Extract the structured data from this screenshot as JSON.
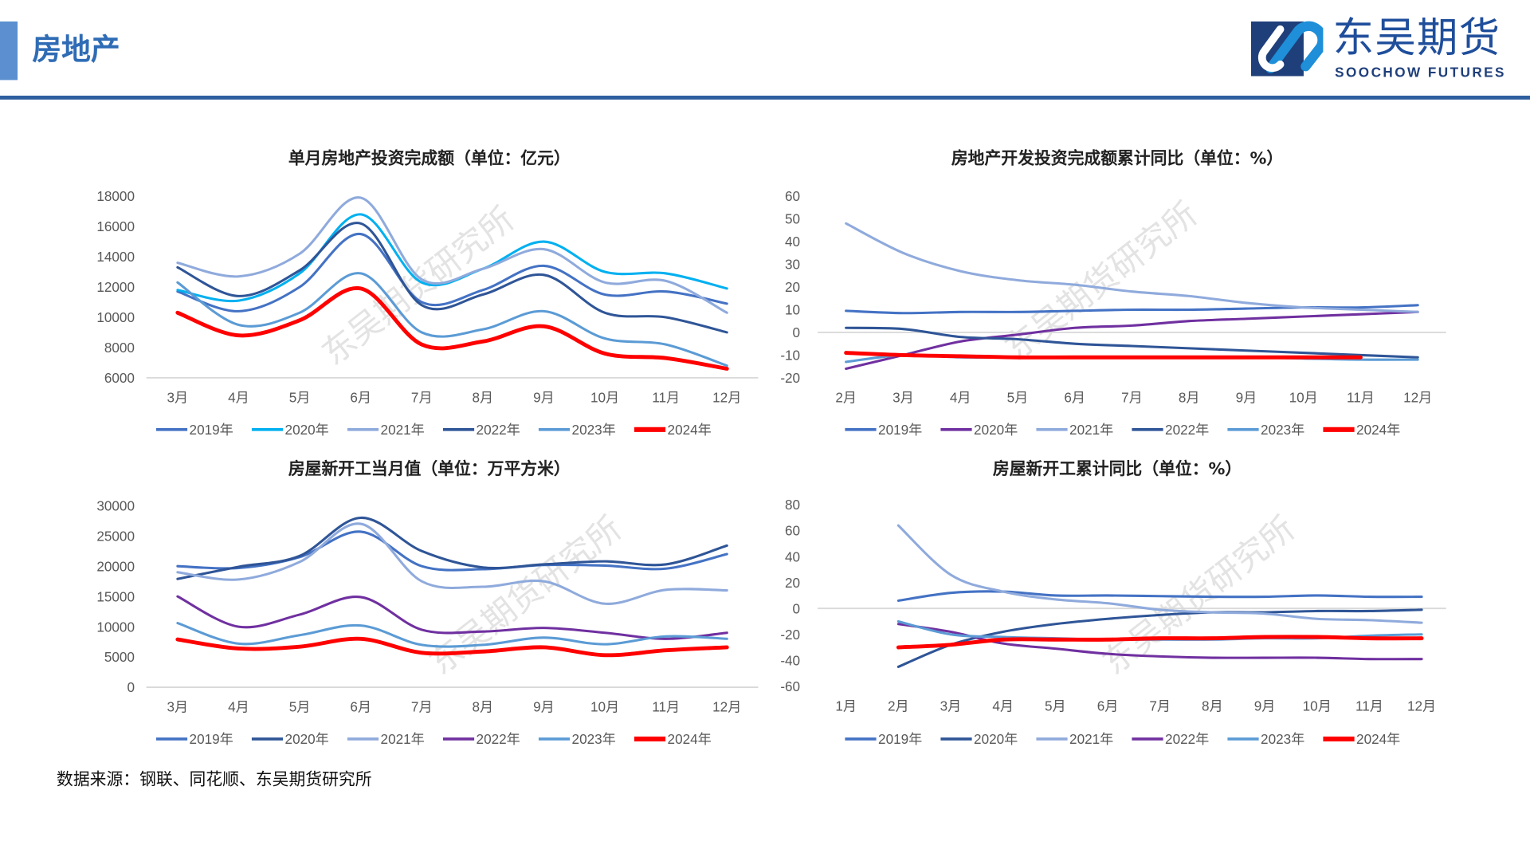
{
  "header": {
    "title": "房地产"
  },
  "logo": {
    "cn": "东吴期货",
    "en": "SOOCHOW FUTURES"
  },
  "watermark": "东吴期货研究所",
  "source": "数据来源：钢联、同花顺、东吴期货研究所",
  "chart_data": [
    {
      "type": "line",
      "title": "单月房地产投资完成额（单位：亿元）",
      "categories": [
        "3月",
        "4月",
        "5月",
        "6月",
        "7月",
        "8月",
        "9月",
        "10月",
        "11月",
        "12月"
      ],
      "ylim": [
        6000,
        18000
      ],
      "yticks": [
        6000,
        8000,
        10000,
        12000,
        14000,
        16000,
        18000
      ],
      "legend": "bottom",
      "grid": false,
      "series": [
        {
          "name": "2019年",
          "color": "#4472C4",
          "values": [
            11700,
            10400,
            12000,
            15500,
            11000,
            11800,
            13400,
            11500,
            11700,
            10900
          ]
        },
        {
          "name": "2020年",
          "color": "#00B0F0",
          "values": [
            11800,
            11100,
            12900,
            16800,
            12300,
            13200,
            15000,
            13000,
            12900,
            11900
          ]
        },
        {
          "name": "2021年",
          "color": "#8FAADC",
          "values": [
            13600,
            12700,
            14200,
            17900,
            12500,
            13200,
            14500,
            12300,
            12400,
            10300
          ]
        },
        {
          "name": "2022年",
          "color": "#2F5597",
          "values": [
            13300,
            11400,
            13100,
            16200,
            10800,
            11500,
            12800,
            10300,
            10000,
            9000
          ]
        },
        {
          "name": "2023年",
          "color": "#5B9BD5",
          "values": [
            12300,
            9500,
            10300,
            12900,
            9000,
            9200,
            10400,
            8600,
            8200,
            6800
          ]
        },
        {
          "name": "2024年",
          "color": "#FF0000",
          "values": [
            10300,
            8800,
            9800,
            11900,
            8200,
            8400,
            9400,
            7600,
            7300,
            6600
          ]
        }
      ]
    },
    {
      "type": "line",
      "title": "房地产开发投资完成额累计同比（单位：%）",
      "categories": [
        "2月",
        "3月",
        "4月",
        "5月",
        "6月",
        "7月",
        "8月",
        "9月",
        "10月",
        "11月",
        "12月"
      ],
      "ylim": [
        -20,
        60
      ],
      "yticks": [
        -20,
        -10,
        0,
        10,
        20,
        30,
        40,
        50,
        60
      ],
      "legend": "bottom",
      "grid": false,
      "series": [
        {
          "name": "2019年",
          "color": "#4472C4",
          "values": [
            9.5,
            8.5,
            9,
            9,
            9.5,
            10,
            10,
            10.5,
            11,
            11,
            12
          ]
        },
        {
          "name": "2020年",
          "color": "#7030A0",
          "values": [
            -16,
            -10,
            -4,
            -1,
            2,
            3,
            5,
            6,
            7,
            8,
            9
          ]
        },
        {
          "name": "2021年",
          "color": "#8FAADC",
          "values": [
            48,
            35,
            27,
            23,
            21,
            18,
            16,
            13,
            11,
            10,
            9
          ]
        },
        {
          "name": "2022年",
          "color": "#2F5597",
          "values": [
            2,
            1.5,
            -2,
            -3,
            -5,
            -6,
            -7,
            -8,
            -9,
            -10,
            -11
          ]
        },
        {
          "name": "2023年",
          "color": "#5B9BD5",
          "values": [
            -13,
            -10,
            -11,
            -11,
            -11,
            -11,
            -11,
            -11,
            -11.5,
            -12,
            -12
          ]
        },
        {
          "name": "2024年",
          "color": "#FF0000",
          "values": [
            -9,
            -10,
            -10.5,
            -11,
            -11,
            -11,
            -11,
            -11,
            -11,
            -11,
            null
          ]
        }
      ]
    },
    {
      "type": "line",
      "title": "房屋新开工当月值（单位：万平方米）",
      "categories": [
        "3月",
        "4月",
        "5月",
        "6月",
        "7月",
        "8月",
        "9月",
        "10月",
        "11月",
        "12月"
      ],
      "ylim": [
        0,
        30000
      ],
      "yticks": [
        0,
        5000,
        10000,
        15000,
        20000,
        25000,
        30000
      ],
      "legend": "bottom",
      "grid": false,
      "series": [
        {
          "name": "2019年",
          "color": "#4472C4",
          "values": [
            20000,
            19700,
            21500,
            25700,
            20000,
            19500,
            20200,
            20100,
            19600,
            22000
          ]
        },
        {
          "name": "2020年",
          "color": "#2F5597",
          "values": [
            17900,
            19900,
            21700,
            28000,
            22500,
            19800,
            20300,
            20800,
            20300,
            23400
          ]
        },
        {
          "name": "2021年",
          "color": "#8FAADC",
          "values": [
            19000,
            17800,
            20700,
            27000,
            17500,
            16600,
            17500,
            13800,
            16100,
            16000
          ]
        },
        {
          "name": "2022年",
          "color": "#7030A0",
          "values": [
            15000,
            10000,
            12000,
            14900,
            9500,
            9200,
            9800,
            9000,
            8000,
            9000
          ]
        },
        {
          "name": "2023年",
          "color": "#5B9BD5",
          "values": [
            10600,
            7200,
            8600,
            10200,
            7000,
            7000,
            8200,
            7100,
            8400,
            8000
          ]
        },
        {
          "name": "2024年",
          "color": "#FF0000",
          "values": [
            7900,
            6400,
            6700,
            8000,
            5700,
            5900,
            6600,
            5300,
            6100,
            6600
          ]
        }
      ]
    },
    {
      "type": "line",
      "title": "房屋新开工累计同比（单位：%）",
      "categories": [
        "1月",
        "2月",
        "3月",
        "4月",
        "5月",
        "6月",
        "7月",
        "8月",
        "9月",
        "10月",
        "11月",
        "12月"
      ],
      "ylim": [
        -60,
        80
      ],
      "yticks": [
        -60,
        -40,
        -20,
        0,
        20,
        40,
        60,
        80
      ],
      "legend": "bottom",
      "grid": false,
      "series": [
        {
          "name": "2019年",
          "color": "#4472C4",
          "values": [
            null,
            6,
            12,
            13,
            10,
            10,
            9.5,
            9,
            9,
            10,
            9,
            9
          ]
        },
        {
          "name": "2020年",
          "color": "#2F5597",
          "values": [
            null,
            -45,
            -28,
            -18,
            -12,
            -8,
            -5,
            -3,
            -3,
            -2,
            -2,
            -1
          ]
        },
        {
          "name": "2021年",
          "color": "#8FAADC",
          "values": [
            null,
            64,
            26,
            13,
            7,
            4,
            -1,
            -3,
            -4,
            -8,
            -9,
            -11
          ]
        },
        {
          "name": "2022年",
          "color": "#7030A0",
          "values": [
            null,
            -12,
            -18,
            -27,
            -31,
            -35,
            -37,
            -38,
            -38,
            -38,
            -39,
            -39
          ]
        },
        {
          "name": "2023年",
          "color": "#5B9BD5",
          "values": [
            null,
            -10,
            -20,
            -22,
            -23,
            -24,
            -24,
            -24,
            -23,
            -23,
            -21,
            -20
          ]
        },
        {
          "name": "2024年",
          "color": "#FF0000",
          "values": [
            null,
            -30,
            -28,
            -24,
            -24,
            -24,
            -23,
            -23,
            -22,
            -22,
            -23,
            -23
          ]
        }
      ]
    }
  ]
}
